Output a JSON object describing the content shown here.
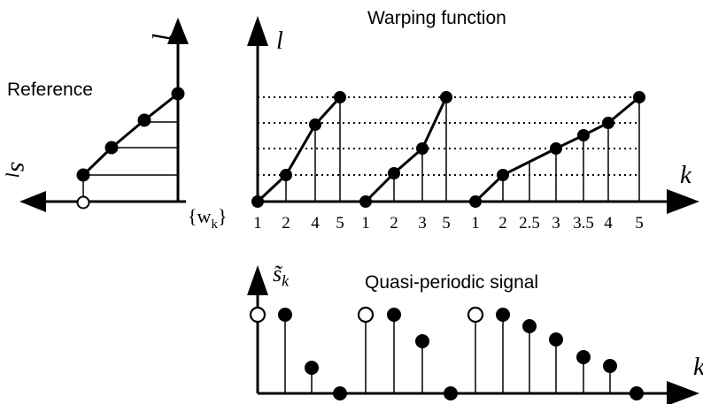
{
  "reference": {
    "title": "Reference",
    "axis_vertical_label": "l",
    "axis_horizontal_label": "s_l"
  },
  "warping": {
    "title": "Warping function",
    "y_axis_label": "l",
    "x_axis_label": "k",
    "series_label": "{w_k}",
    "tick_labels": [
      "1",
      "2",
      "4",
      "5",
      "1",
      "2",
      "3",
      "5",
      "1",
      "2",
      "2.5",
      "3",
      "3.5",
      "4",
      "5"
    ]
  },
  "signal": {
    "title": "Quasi-periodic signal",
    "y_axis_label": "s̃_k",
    "x_axis_label": "k"
  },
  "colors": {
    "ink": "#000000",
    "background": "#ffffff"
  }
}
